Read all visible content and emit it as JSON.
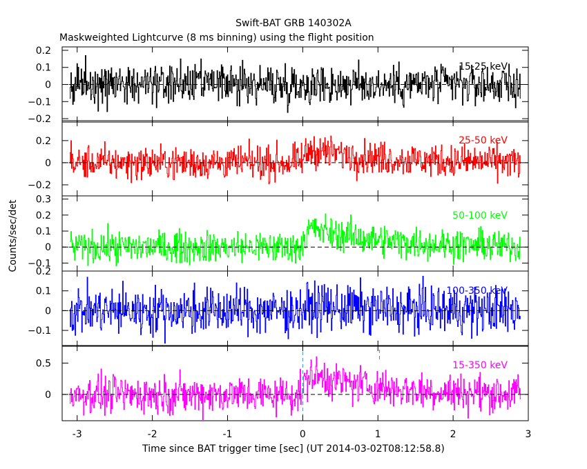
{
  "title": "Swift-BAT GRB 140302A",
  "subtitle": "Maskweighted Lightcurve (8 ms binning) using the flight position",
  "chart_data": {
    "type": "line",
    "title": "Swift-BAT GRB 140302A",
    "subtitle": "Maskweighted Lightcurve (8 ms binning) using the flight position",
    "xlabel": "Time since BAT trigger time [sec] (UT 2014-03-02T08:12:58.8)",
    "ylabel": "Counts/sec/det",
    "xlim": [
      -3.2,
      3.0
    ],
    "x_ticks": [
      "-3",
      "-2",
      "-1",
      "0",
      "1",
      "2",
      "3"
    ],
    "x_tick_values": [
      -3,
      -2,
      -1,
      0,
      1,
      2,
      3
    ],
    "bin_size_sec": 0.008,
    "data_range": [
      -3.1,
      2.9
    ],
    "zero_line": "dashed",
    "markers": [
      0,
      1.02
    ],
    "panels": [
      {
        "name": "15-25 keV",
        "color": "#000000",
        "ylim": [
          -0.22,
          0.22
        ],
        "y_ticks": [
          "−0.2",
          "−0.1",
          "0",
          "0.1",
          "0.2"
        ],
        "y_tick_values": [
          -0.2,
          -0.1,
          0,
          0.1,
          0.2
        ],
        "noise_amplitude": 0.06,
        "pulse_peak": 0.0
      },
      {
        "name": "25-50 keV",
        "color": "#ff0000",
        "ylim": [
          -0.3,
          0.38
        ],
        "y_ticks": [
          "−0.2",
          "0",
          "0.2"
        ],
        "y_tick_values": [
          -0.2,
          0,
          0.2
        ],
        "noise_amplitude": 0.075,
        "pulse_peak": 0.12
      },
      {
        "name": "50-100 keV",
        "color": "#00ff00",
        "ylim": [
          -0.15,
          0.32
        ],
        "y_ticks": [
          "−0.1",
          "0",
          "0.1",
          "0.2",
          "0.3"
        ],
        "y_tick_values": [
          -0.1,
          0,
          0.1,
          0.2,
          0.3
        ],
        "noise_amplitude": 0.05,
        "pulse_peak": 0.12
      },
      {
        "name": "100-350 keV",
        "color": "#0000ff",
        "ylim": [
          -0.18,
          0.2
        ],
        "y_ticks": [
          "−0.1",
          "0",
          "0.1",
          "0.2"
        ],
        "y_tick_values": [
          -0.1,
          0,
          0.1,
          0.2
        ],
        "noise_amplitude": 0.06,
        "pulse_peak": 0.02
      },
      {
        "name": "15-350 keV",
        "color": "#ff00ff",
        "ylim": [
          -0.42,
          0.78
        ],
        "y_ticks": [
          "0",
          "0.5"
        ],
        "y_tick_values": [
          0,
          0.5
        ],
        "noise_amplitude": 0.15,
        "pulse_peak": 0.32
      }
    ]
  }
}
